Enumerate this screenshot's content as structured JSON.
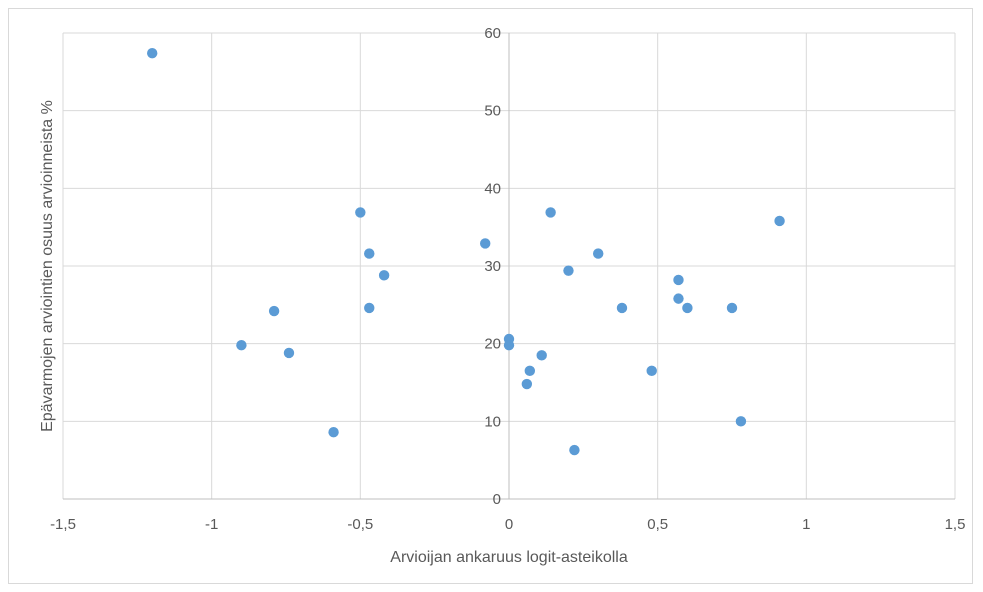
{
  "chart_data": {
    "type": "scatter",
    "title": "",
    "xlabel": "Arvioijan ankaruus logit-asteikolla",
    "ylabel": "Epävarmojen arviointien osuus arvioinneista %",
    "xlim": [
      -1.5,
      1.5
    ],
    "ylim": [
      0,
      60
    ],
    "x_ticks": [
      -1.5,
      -1,
      -0.5,
      0,
      0.5,
      1,
      1.5
    ],
    "x_tick_labels": [
      "-1,5",
      "-1",
      "-0,5",
      "0",
      "0,5",
      "1",
      "1,5"
    ],
    "y_ticks": [
      0,
      10,
      20,
      30,
      40,
      50,
      60
    ],
    "y_tick_labels": [
      "0",
      "10",
      "20",
      "30",
      "40",
      "50",
      "60"
    ],
    "grid": true,
    "marker_color": "#5b9bd5",
    "grid_color": "#d9d9d9",
    "series": [
      {
        "points": [
          [
            -1.2,
            57.4
          ],
          [
            -0.9,
            19.8
          ],
          [
            -0.79,
            24.2
          ],
          [
            -0.74,
            18.8
          ],
          [
            -0.59,
            8.6
          ],
          [
            -0.5,
            36.9
          ],
          [
            -0.47,
            31.6
          ],
          [
            -0.47,
            24.6
          ],
          [
            -0.42,
            28.8
          ],
          [
            -0.08,
            32.9
          ],
          [
            0.0,
            20.6
          ],
          [
            0.0,
            19.8
          ],
          [
            0.06,
            14.8
          ],
          [
            0.07,
            16.5
          ],
          [
            0.11,
            18.5
          ],
          [
            0.14,
            36.9
          ],
          [
            0.2,
            29.4
          ],
          [
            0.22,
            6.3
          ],
          [
            0.3,
            31.6
          ],
          [
            0.38,
            24.6
          ],
          [
            0.48,
            16.5
          ],
          [
            0.57,
            28.2
          ],
          [
            0.57,
            25.8
          ],
          [
            0.6,
            24.6
          ],
          [
            0.75,
            24.6
          ],
          [
            0.78,
            10.0
          ],
          [
            0.91,
            35.8
          ]
        ]
      }
    ]
  }
}
